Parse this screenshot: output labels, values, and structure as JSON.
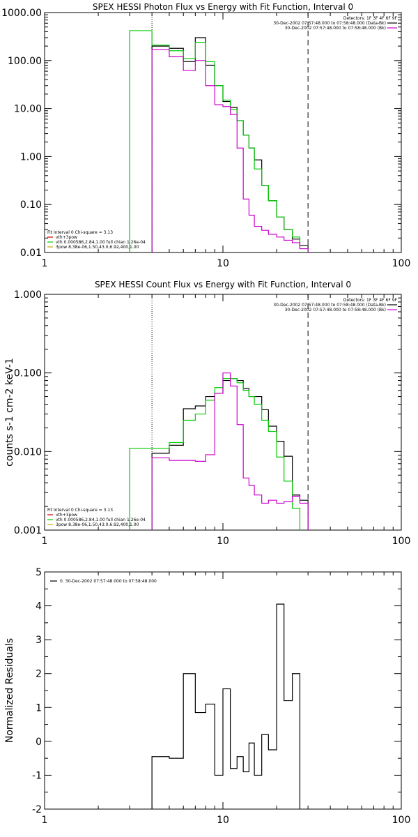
{
  "chart_data": [
    {
      "type": "line",
      "title": "SPEX HESSI Photon Flux vs Energy with Fit Function, Interval 0",
      "xscale": "log",
      "yscale": "log",
      "xlim": [
        1,
        100
      ],
      "ylim": [
        0.01,
        1000
      ],
      "xticks": [
        "1",
        "10",
        "100"
      ],
      "yticks": [
        "0.01",
        "0.10",
        "1.00",
        "10.00",
        "100.00",
        "1000.00"
      ],
      "dotted_x": 4,
      "dashed_x": 30,
      "edges": [
        3,
        4,
        5,
        6,
        7,
        8,
        9,
        10,
        11,
        12,
        13,
        14,
        15,
        16.5,
        18,
        20,
        22,
        24.5,
        27,
        30
      ],
      "series": [
        {
          "color": "#000000",
          "values": [
            null,
            200,
            180,
            95,
            300,
            80,
            30,
            14,
            10.5,
            5.6,
            2.8,
            1.5,
            0.85,
            0.25,
            0.12,
            0.055,
            0.03,
            0.019,
            0.014
          ]
        },
        {
          "color": "#00cc00",
          "values": [
            420,
            210,
            160,
            110,
            240,
            95,
            30,
            15,
            9.5,
            5.6,
            2.8,
            1.5,
            0.55,
            0.25,
            0.12,
            0.055,
            0.03,
            0.021,
            0.012
          ]
        },
        {
          "color": "#cc00cc",
          "values": [
            null,
            170,
            120,
            62,
            100,
            30,
            12,
            11,
            7.5,
            1.5,
            0.13,
            0.06,
            0.035,
            0.029,
            0.024,
            0.021,
            0.018,
            0.016,
            0.012
          ]
        }
      ],
      "legend_top": [
        {
          "color": "#000000",
          "text": "Detectors: 1F 3F 4F 6F 9F"
        },
        {
          "color": "#000000",
          "text": "30-Dec-2002 07:57:48.000 to 07:58:48.000 (Data-Bk)"
        },
        {
          "color": "#cc00cc",
          "text": "30-Dec-2002 07:57:48.000 to 07:58:48.000 (Bk)"
        }
      ],
      "legend_bottom": [
        {
          "color": "#000000",
          "text": "Fit Interval 0   Chi-square = 3.13"
        },
        {
          "color": "#cc0000",
          "text": "vth+3pow"
        },
        {
          "color": "#00cc00",
          "text": "vth 0.000586,2.84,1.00  full chian 1.26e-04"
        },
        {
          "color": "#ccaa00",
          "text": "3pow 8.38e-06,1.50,43.0,6.92,400,1.00"
        }
      ]
    },
    {
      "type": "line",
      "title": "SPEX HESSI Count Flux vs Energy with Fit Function, Interval 0",
      "xscale": "log",
      "yscale": "log",
      "xlim": [
        1,
        100
      ],
      "ylim": [
        0.001,
        1
      ],
      "xticks": [
        "1",
        "10",
        "100"
      ],
      "yticks": [
        "0.001",
        "0.010",
        "0.100",
        "1.000"
      ],
      "ylabel": "counts s-1 cm-2 keV-1",
      "dotted_x": 4,
      "dashed_x": 30,
      "edges": [
        3,
        4,
        5,
        6,
        7,
        8,
        9,
        10,
        11,
        12,
        13,
        14,
        15,
        16.5,
        18,
        20,
        22,
        24.5,
        27,
        30
      ],
      "series": [
        {
          "color": "#000000",
          "values": [
            null,
            0.0095,
            0.012,
            0.035,
            0.038,
            0.05,
            0.055,
            0.08,
            0.085,
            0.08,
            0.063,
            0.05,
            0.05,
            0.034,
            0.021,
            0.0135,
            0.0087,
            0.0028,
            0.0024
          ]
        },
        {
          "color": "#00cc00",
          "values": [
            0.011,
            0.011,
            0.013,
            0.025,
            0.03,
            0.045,
            0.065,
            0.085,
            0.085,
            0.075,
            0.06,
            0.05,
            0.04,
            0.025,
            0.018,
            0.0085,
            0.0042,
            0.0019,
            0.0008
          ]
        },
        {
          "color": "#cc00cc",
          "values": [
            null,
            0.0083,
            0.0077,
            0.0077,
            0.0075,
            0.0091,
            0.055,
            0.1,
            0.068,
            0.022,
            0.0046,
            0.0037,
            0.0028,
            0.0022,
            0.0024,
            0.0022,
            0.0023,
            0.0027,
            0.0022
          ]
        }
      ],
      "legend_top": [
        {
          "color": "#000000",
          "text": "Detectors: 1F 3F 4F 6F 9F"
        },
        {
          "color": "#000000",
          "text": "30-Dec-2002 07:57:48.000 to 07:58:48.000 (Data-Bk)"
        },
        {
          "color": "#cc00cc",
          "text": "30-Dec-2002 07:57:48.000 to 07:58:48.000 (Bk)"
        }
      ],
      "legend_bottom": [
        {
          "color": "#000000",
          "text": "Fit Interval 0   Chi-square = 3.13"
        },
        {
          "color": "#cc0000",
          "text": "vth+3pow"
        },
        {
          "color": "#00cc00",
          "text": "vth 0.000586,2.84,1.00  full chian 1.26e-04"
        },
        {
          "color": "#ccaa00",
          "text": "3pow 8.38e-06,1.50,43.0,6.92,400,1.00"
        }
      ]
    },
    {
      "type": "line",
      "title": "",
      "xscale": "log",
      "yscale": "linear",
      "xlim": [
        1,
        100
      ],
      "ylim": [
        -2,
        5
      ],
      "xticks": [
        "1",
        "10",
        "100"
      ],
      "yticks": [
        "-2",
        "-1",
        "0",
        "1",
        "2",
        "3",
        "4",
        "5"
      ],
      "ylabel": "Normalized Residuals",
      "edges": [
        4,
        5,
        6,
        7,
        8,
        9,
        10,
        11,
        12,
        13,
        14,
        15,
        16.5,
        18,
        20,
        22,
        24.5,
        27,
        30
      ],
      "drop_x": 30,
      "start_y": -2,
      "series": [
        {
          "color": "#000000",
          "values": [
            -0.45,
            -0.5,
            2.0,
            0.85,
            1.1,
            -1.0,
            1.55,
            -0.8,
            -0.45,
            -0.9,
            -0.05,
            -1.0,
            0.2,
            -0.25,
            4.05,
            1.2,
            2.0
          ]
        }
      ],
      "legend_top": [
        {
          "color": "#000000",
          "text": "0. 30-Dec-2002 07:57:48.000 to 07:58:48.000"
        }
      ]
    }
  ]
}
